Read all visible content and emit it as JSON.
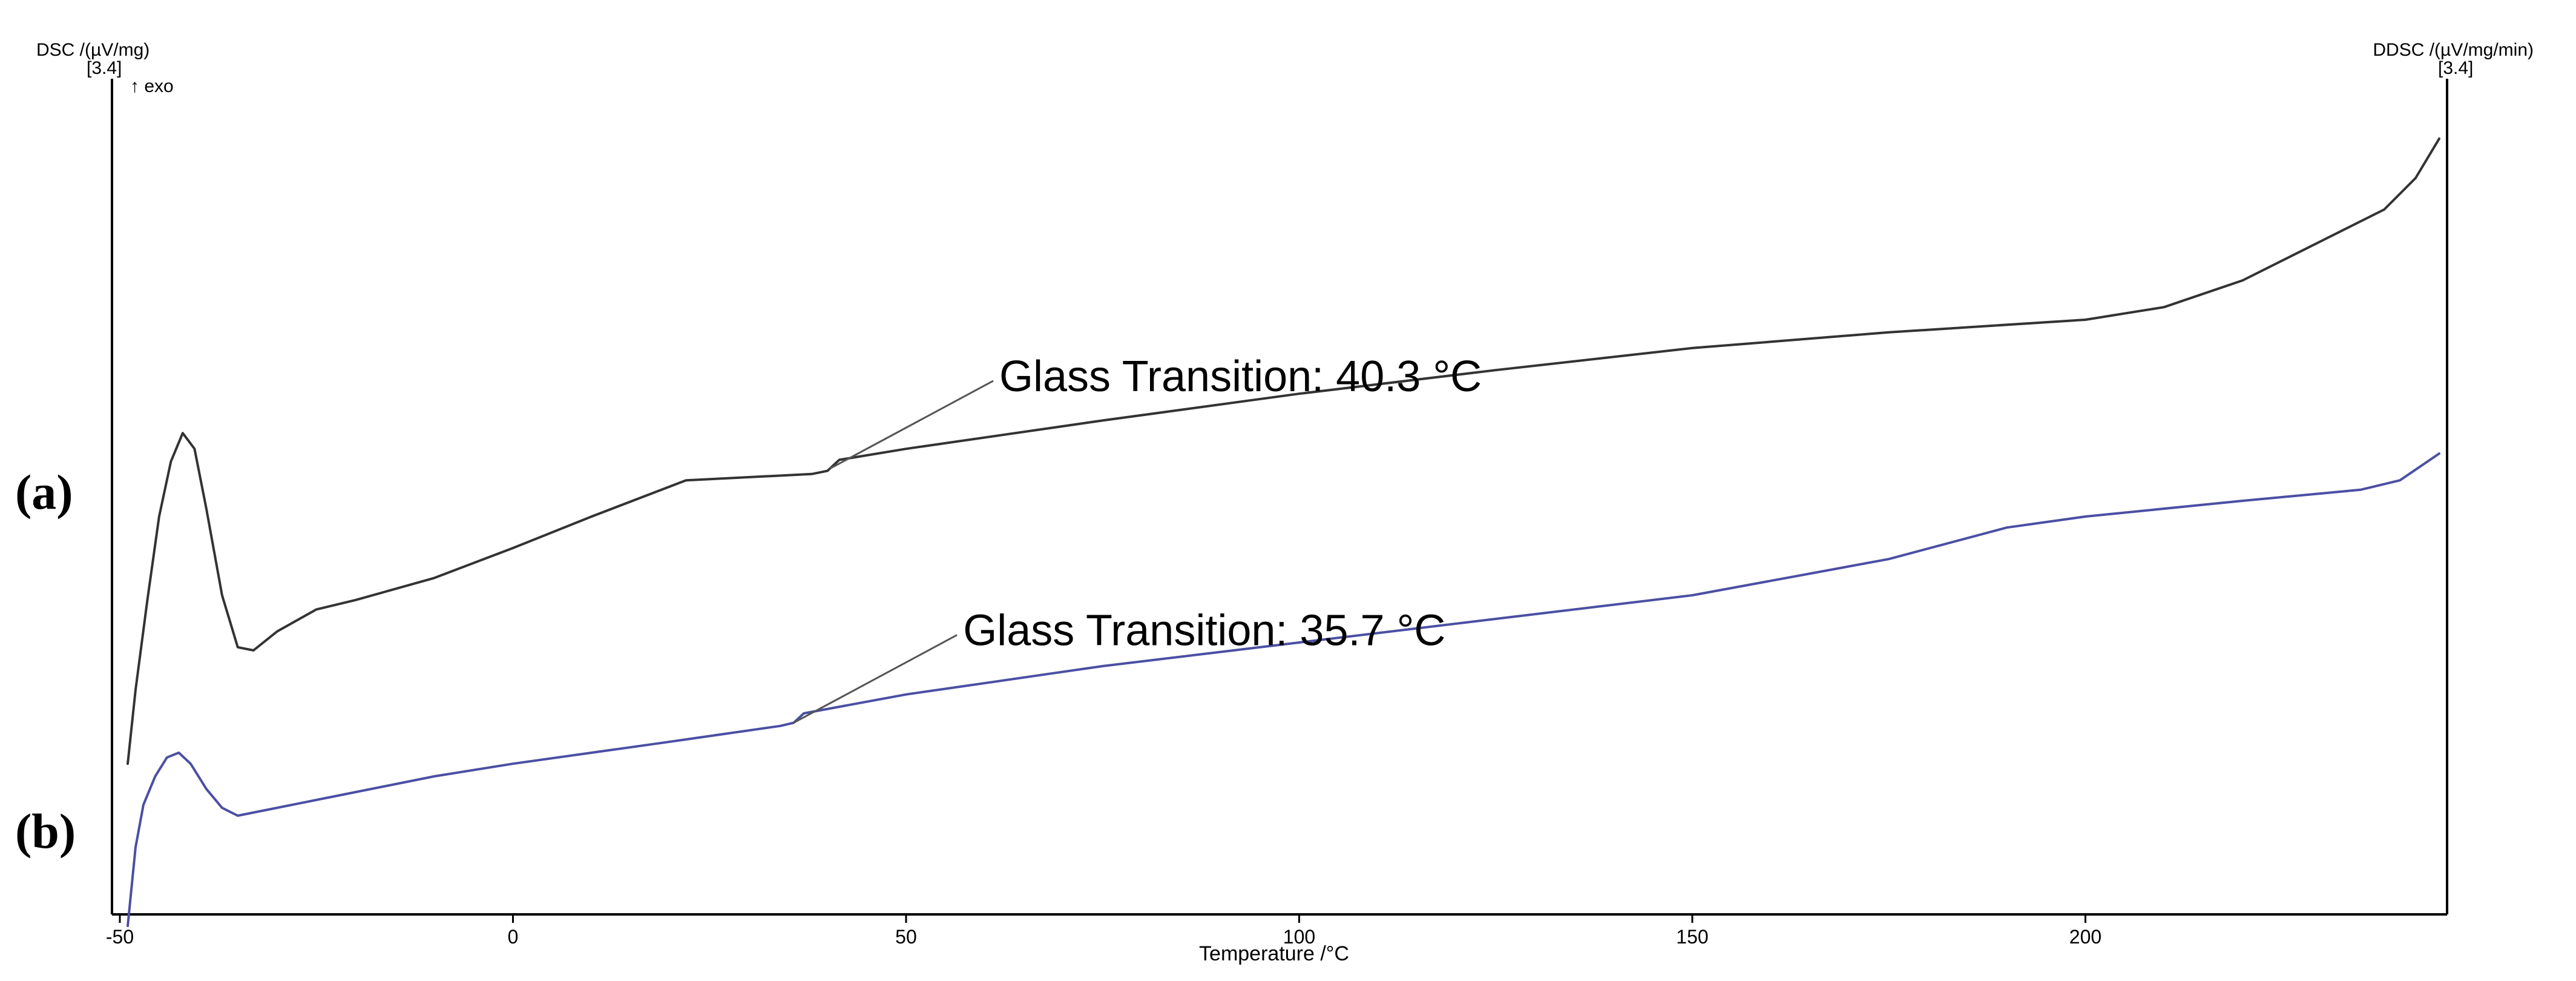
{
  "chart_data": {
    "type": "line",
    "xlabel": "Temperature /°C",
    "ylabel_left": "DSC /(µV/mg)",
    "ylabel_left_scale": "[3.4]",
    "exo_marker": "↑ exo",
    "ylabel_right": "DDSC /(µV/mg/min)",
    "ylabel_right_scale": "[3.4]",
    "xlim": [
      -51,
      246
    ],
    "x_ticks": [
      {
        "value": -50,
        "label": "-50"
      },
      {
        "value": 0,
        "label": "0"
      },
      {
        "value": 50,
        "label": "50"
      },
      {
        "value": 100,
        "label": "100"
      },
      {
        "value": 150,
        "label": "150"
      },
      {
        "value": 200,
        "label": "200"
      }
    ],
    "grid": false,
    "y_ticks_shown": false,
    "panel_labels": [
      "(a)",
      "(b)"
    ],
    "series": [
      {
        "panel": "(a)",
        "color": "#333333",
        "x": [
          -49,
          -48,
          -46.5,
          -45,
          -43.5,
          -42,
          -40.5,
          -39,
          -37,
          -35,
          -33,
          -30,
          -25,
          -20,
          -10,
          0,
          10,
          22,
          38,
          40,
          41.5,
          50,
          75,
          100,
          125,
          150,
          175,
          200,
          210,
          220,
          230,
          238,
          242,
          245
        ],
        "y": [
          -0.62,
          -0.15,
          0.42,
          0.95,
          1.3,
          1.48,
          1.38,
          1.0,
          0.45,
          0.12,
          0.1,
          0.22,
          0.36,
          0.42,
          0.56,
          0.75,
          0.95,
          1.18,
          1.22,
          1.24,
          1.31,
          1.38,
          1.56,
          1.73,
          1.88,
          2.02,
          2.12,
          2.2,
          2.28,
          2.45,
          2.7,
          2.9,
          3.1,
          3.35
        ],
        "annotation": {
          "text": "Glass Transition: 40.3 °C",
          "x": 40.3
        }
      },
      {
        "panel": "(b)",
        "color": "#4b4fa3",
        "x": [
          -49,
          -48,
          -47,
          -45.5,
          -44,
          -42.5,
          -41,
          -39,
          -37,
          -35,
          -30,
          -20,
          -10,
          0,
          10,
          20,
          34,
          35.7,
          37,
          50,
          75,
          100,
          125,
          150,
          175,
          190,
          200,
          220,
          235,
          240,
          245
        ],
        "y": [
          -1.65,
          -1.15,
          -0.88,
          -0.7,
          -0.58,
          -0.55,
          -0.62,
          -0.78,
          -0.9,
          -0.95,
          -0.9,
          -0.8,
          -0.7,
          -0.62,
          -0.55,
          -0.48,
          -0.38,
          -0.36,
          -0.3,
          -0.18,
          0.0,
          0.15,
          0.3,
          0.45,
          0.68,
          0.88,
          0.95,
          1.05,
          1.12,
          1.18,
          1.35
        ],
        "annotation": {
          "text": "Glass Transition: 35.7 °C",
          "x": 35.7
        }
      }
    ]
  }
}
